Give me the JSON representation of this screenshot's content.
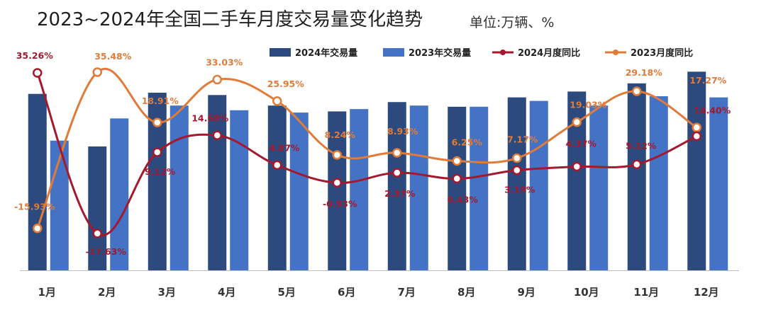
{
  "title": "2023~2024年全国二手车月度交易量变化趋势",
  "unit": "单位:万辆、%",
  "colors": {
    "bar_2024": "#2d4a7e",
    "bar_2023": "#4472c4",
    "line_2024": "#a3192d",
    "line_2023": "#e07b39",
    "label_2024": "#a3192d",
    "label_2023": "#e07b39",
    "axis": "#bfbfbf"
  },
  "chart_data": {
    "type": "bar",
    "title": "2023~2024年全国二手车月度交易量变化趋势",
    "unit": "单位:万辆、%",
    "categories": [
      "1月",
      "2月",
      "3月",
      "4月",
      "5月",
      "6月",
      "7月",
      "8月",
      "9月",
      "10月",
      "11月",
      "12月"
    ],
    "series": [
      {
        "name": "2024年交易量",
        "chart_type": "bar",
        "axis": "left",
        "values": [
          151,
          106,
          152,
          150,
          141,
          136,
          144,
          140,
          148,
          153,
          160,
          170
        ]
      },
      {
        "name": "2023年交易量",
        "chart_type": "bar",
        "axis": "left",
        "values": [
          111,
          130,
          141,
          137,
          135,
          138,
          141,
          140,
          145,
          141,
          149,
          148
        ]
      },
      {
        "name": "2024月度同比",
        "chart_type": "line",
        "axis": "right",
        "values": [
          35.26,
          -17.63,
          9.12,
          14.68,
          4.87,
          -0.93,
          2.37,
          0.43,
          3.19,
          4.37,
          5.12,
          14.4
        ],
        "labels": [
          "35.26%",
          "-17.63%",
          "9.12%",
          "14.68%",
          "4.87%",
          "-0.93%",
          "2.37%",
          "0.43%",
          "3.19%",
          "4.37%",
          "5.12%",
          "14.40%"
        ]
      },
      {
        "name": "2023月度同比",
        "chart_type": "line",
        "axis": "right",
        "values": [
          -15.93,
          35.48,
          18.91,
          33.03,
          25.95,
          8.24,
          8.93,
          6.25,
          7.17,
          19.03,
          29.18,
          17.27
        ],
        "labels": [
          "-15.93%",
          "35.48%",
          "18.91%",
          "33.03%",
          "25.95%",
          "8.24%",
          "8.93%",
          "6.25%",
          "7.17%",
          "19.03%",
          "29.18%",
          "17.27%"
        ]
      }
    ],
    "legend_placement": "top-right",
    "grid": false
  }
}
